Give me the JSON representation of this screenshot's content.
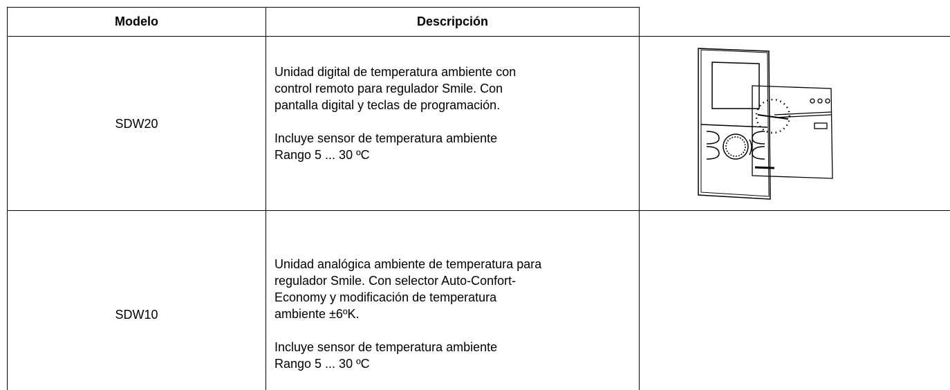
{
  "table": {
    "header": [
      "Modelo",
      "Descripción"
    ],
    "rows": [
      {
        "model": "SDW20",
        "description": [
          [
            "Unidad digital de temperatura ambiente con",
            "control remoto para regulador Smile. Con",
            "pantalla digital y teclas de programación."
          ],
          [
            "Incluye sensor de temperatura ambiente",
            "Rango 5 ... 30 ºC"
          ]
        ]
      },
      {
        "model": "SDW10",
        "description": [
          [
            "Unidad analógica ambiente de temperatura para",
            "regulador Smile. Con selector Auto-Confort-",
            "Economy y modificación de temperatura",
            "ambiente ±6ºK."
          ],
          [
            "Incluye sensor de temperatura ambiente",
            "Rango 5 ... 30 ºC"
          ]
        ]
      }
    ]
  }
}
